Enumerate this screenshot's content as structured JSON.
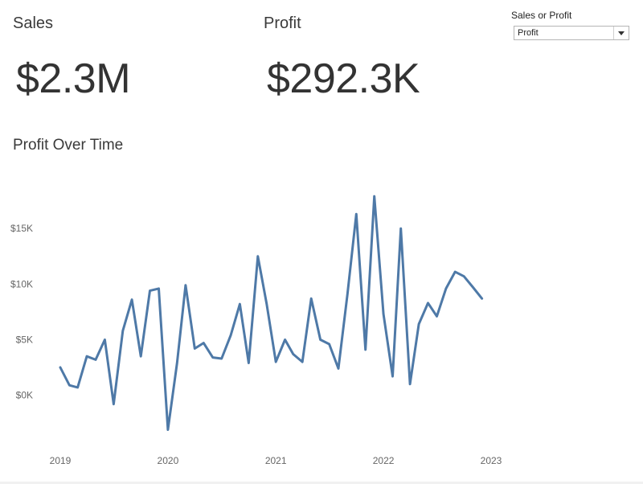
{
  "kpis": {
    "sales": {
      "label": "Sales",
      "value": "$2.3M"
    },
    "profit": {
      "label": "Profit",
      "value": "$292.3K"
    }
  },
  "parameter": {
    "label": "Sales or Profit",
    "selected": "Profit"
  },
  "chart_data": {
    "type": "line",
    "title": "Profit Over Time",
    "xlabel": "",
    "ylabel": "",
    "line_color": "#4e79a7",
    "xlim": [
      "2019-01-01",
      "2023-01-01"
    ],
    "ylim": [
      -3500,
      19500
    ],
    "y_ticks": [
      0,
      5000,
      10000,
      15000
    ],
    "y_tick_labels": [
      "$0K",
      "$5K",
      "$10K",
      "$15K"
    ],
    "x_ticks": [
      "2019-01-01",
      "2020-01-01",
      "2021-01-01",
      "2022-01-01",
      "2023-01-01"
    ],
    "x_tick_labels": [
      "2019",
      "2020",
      "2021",
      "2022",
      "2023"
    ],
    "grid": false,
    "series": [
      {
        "x": [
          "2019-01",
          "2019-02",
          "2019-03",
          "2019-04",
          "2019-05",
          "2019-06",
          "2019-07",
          "2019-08",
          "2019-09",
          "2019-10",
          "2019-11",
          "2019-12",
          "2020-01",
          "2020-02",
          "2020-03",
          "2020-04",
          "2020-05",
          "2020-06",
          "2020-07",
          "2020-08",
          "2020-09",
          "2020-10",
          "2020-11",
          "2020-12",
          "2021-01",
          "2021-02",
          "2021-03",
          "2021-04",
          "2021-05",
          "2021-06",
          "2021-07",
          "2021-08",
          "2021-09",
          "2021-10",
          "2021-11",
          "2021-12",
          "2022-01",
          "2022-02",
          "2022-03",
          "2022-04",
          "2022-05",
          "2022-06",
          "2022-07",
          "2022-08",
          "2022-09",
          "2022-10",
          "2022-11",
          "2022-12"
        ],
        "values": [
          2500,
          900,
          700,
          3500,
          3200,
          5000,
          -800,
          5800,
          8600,
          3500,
          9400,
          9600,
          -3100,
          2900,
          9900,
          4200,
          4700,
          3400,
          3300,
          5400,
          8200,
          2900,
          12500,
          8200,
          3000,
          5000,
          3700,
          3000,
          8700,
          5000,
          4600,
          2400,
          9100,
          16300,
          4100,
          17900,
          7300,
          1700,
          15000,
          1000,
          6400,
          8300,
          7100,
          9600,
          11100,
          10700,
          9700,
          8700
        ]
      }
    ]
  }
}
